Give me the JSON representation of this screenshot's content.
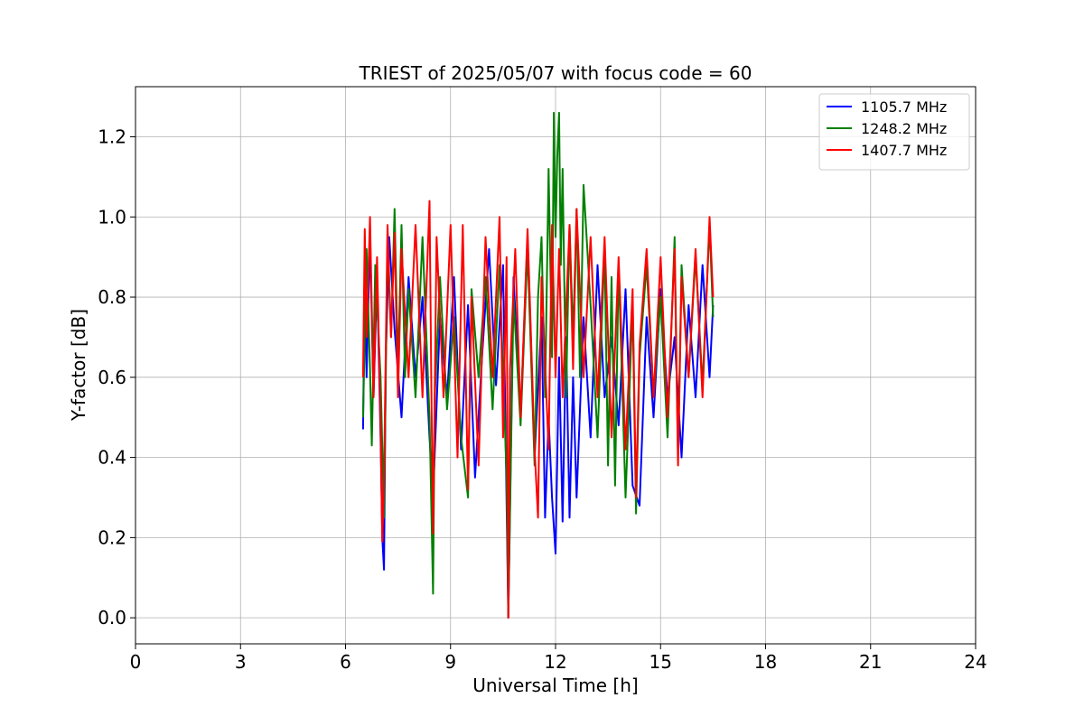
{
  "chart_data": {
    "type": "line",
    "title": "TRIEST of 2025/05/07 with focus code = 60",
    "xlabel": "Universal Time [h]",
    "ylabel": "Y-factor [dB]",
    "xlim": [
      0,
      24
    ],
    "ylim": [
      -0.065,
      1.325
    ],
    "xticks": [
      0,
      3,
      6,
      9,
      12,
      15,
      18,
      21,
      24
    ],
    "xtick_labels": [
      "0",
      "3",
      "6",
      "9",
      "12",
      "15",
      "18",
      "21",
      "24"
    ],
    "yticks": [
      0.0,
      0.2,
      0.4,
      0.6,
      0.8,
      1.0,
      1.2
    ],
    "ytick_labels": [
      "0.0",
      "0.2",
      "0.4",
      "0.6",
      "0.8",
      "1.0",
      "1.2"
    ],
    "grid": true,
    "legend_position": "top-right",
    "series": [
      {
        "name": "1105.7 MHz",
        "color": "#0000ff",
        "x": [
          6.5,
          6.55,
          6.6,
          6.7,
          6.8,
          6.9,
          7.0,
          7.05,
          7.1,
          7.15,
          7.25,
          7.4,
          7.6,
          7.8,
          8.0,
          8.2,
          8.4,
          8.5,
          8.7,
          8.9,
          9.1,
          9.3,
          9.5,
          9.7,
          9.9,
          10.1,
          10.3,
          10.5,
          10.65,
          10.8,
          11.0,
          11.2,
          11.4,
          11.6,
          11.7,
          11.8,
          11.9,
          12.0,
          12.1,
          12.2,
          12.3,
          12.4,
          12.5,
          12.6,
          12.8,
          13.0,
          13.2,
          13.4,
          13.6,
          13.8,
          14.0,
          14.2,
          14.4,
          14.6,
          14.8,
          15.0,
          15.2,
          15.4,
          15.6,
          15.8,
          16.0,
          16.2,
          16.4,
          16.5
        ],
        "y": [
          0.47,
          0.85,
          0.6,
          0.95,
          0.55,
          0.85,
          0.45,
          0.2,
          0.12,
          0.65,
          0.95,
          0.72,
          0.5,
          0.85,
          0.6,
          0.8,
          0.45,
          0.3,
          0.75,
          0.55,
          0.85,
          0.42,
          0.78,
          0.35,
          0.65,
          0.92,
          0.58,
          0.88,
          0.0,
          0.85,
          0.5,
          0.95,
          0.4,
          0.75,
          0.25,
          0.5,
          0.3,
          0.16,
          0.65,
          0.24,
          0.7,
          0.25,
          0.6,
          0.3,
          0.75,
          0.45,
          0.88,
          0.55,
          0.7,
          0.48,
          0.82,
          0.33,
          0.28,
          0.75,
          0.5,
          0.82,
          0.55,
          0.7,
          0.4,
          0.78,
          0.55,
          0.88,
          0.6,
          0.78
        ]
      },
      {
        "name": "1248.2 MHz",
        "color": "#008000",
        "x": [
          6.5,
          6.6,
          6.7,
          6.75,
          6.85,
          7.0,
          7.1,
          7.2,
          7.3,
          7.4,
          7.5,
          7.6,
          7.7,
          7.8,
          8.0,
          8.2,
          8.4,
          8.5,
          8.55,
          8.7,
          8.9,
          9.1,
          9.3,
          9.5,
          9.6,
          9.8,
          10.0,
          10.2,
          10.4,
          10.6,
          10.65,
          10.8,
          11.0,
          11.2,
          11.4,
          11.5,
          11.6,
          11.7,
          11.8,
          11.9,
          11.95,
          12.0,
          12.05,
          12.1,
          12.15,
          12.2,
          12.3,
          12.4,
          12.5,
          12.6,
          12.7,
          12.8,
          13.0,
          13.2,
          13.4,
          13.5,
          13.6,
          13.7,
          13.8,
          14.0,
          14.2,
          14.3,
          14.4,
          14.6,
          14.8,
          15.0,
          15.2,
          15.4,
          15.5,
          15.6,
          15.8,
          16.0,
          16.2,
          16.4,
          16.5
        ],
        "y": [
          0.5,
          0.92,
          0.62,
          0.43,
          0.88,
          0.6,
          0.25,
          0.95,
          0.7,
          1.02,
          0.62,
          0.98,
          0.6,
          0.82,
          0.55,
          0.95,
          0.5,
          0.06,
          0.55,
          0.85,
          0.52,
          0.75,
          0.45,
          0.3,
          0.82,
          0.6,
          0.85,
          0.52,
          0.88,
          0.35,
          0.0,
          0.8,
          0.48,
          0.92,
          0.38,
          0.8,
          0.95,
          0.55,
          1.12,
          0.65,
          1.26,
          0.95,
          1.15,
          1.26,
          0.88,
          1.12,
          0.55,
          0.98,
          0.7,
          1.02,
          0.6,
          1.08,
          0.78,
          0.45,
          0.92,
          0.38,
          0.85,
          0.33,
          0.88,
          0.3,
          0.78,
          0.26,
          0.65,
          0.88,
          0.55,
          0.8,
          0.45,
          0.95,
          0.4,
          0.88,
          0.6,
          0.9,
          0.58,
          0.98,
          0.75
        ]
      },
      {
        "name": "1407.7 MHz",
        "color": "#ff0000",
        "x": [
          6.5,
          6.55,
          6.6,
          6.7,
          6.8,
          6.9,
          7.0,
          7.05,
          7.1,
          7.2,
          7.3,
          7.4,
          7.5,
          7.6,
          7.8,
          8.0,
          8.2,
          8.4,
          8.45,
          8.5,
          8.6,
          8.8,
          9.0,
          9.2,
          9.35,
          9.5,
          9.6,
          9.8,
          10.0,
          10.2,
          10.4,
          10.5,
          10.6,
          10.65,
          10.7,
          10.85,
          11.0,
          11.2,
          11.4,
          11.5,
          11.6,
          11.8,
          11.9,
          12.0,
          12.1,
          12.2,
          12.4,
          12.5,
          12.6,
          12.8,
          13.0,
          13.2,
          13.4,
          13.6,
          13.8,
          14.0,
          14.2,
          14.3,
          14.4,
          14.6,
          14.8,
          15.0,
          15.2,
          15.4,
          15.5,
          15.6,
          15.8,
          16.0,
          16.2,
          16.4,
          16.5
        ],
        "y": [
          0.6,
          0.97,
          0.7,
          1.0,
          0.55,
          0.9,
          0.48,
          0.19,
          0.35,
          0.98,
          0.7,
          0.96,
          0.55,
          0.92,
          0.6,
          0.98,
          0.55,
          1.04,
          0.6,
          0.21,
          0.95,
          0.55,
          0.98,
          0.4,
          0.98,
          0.32,
          0.8,
          0.38,
          0.95,
          0.6,
          1.0,
          0.45,
          0.9,
          0.0,
          0.62,
          0.92,
          0.5,
          0.97,
          0.42,
          0.25,
          0.85,
          0.42,
          0.98,
          0.6,
          0.92,
          0.55,
          0.98,
          0.62,
          1.02,
          0.6,
          0.95,
          0.55,
          0.95,
          0.45,
          0.9,
          0.42,
          0.82,
          0.3,
          0.68,
          0.92,
          0.55,
          0.9,
          0.5,
          0.92,
          0.38,
          0.85,
          0.6,
          0.92,
          0.55,
          1.0,
          0.8
        ]
      }
    ]
  }
}
